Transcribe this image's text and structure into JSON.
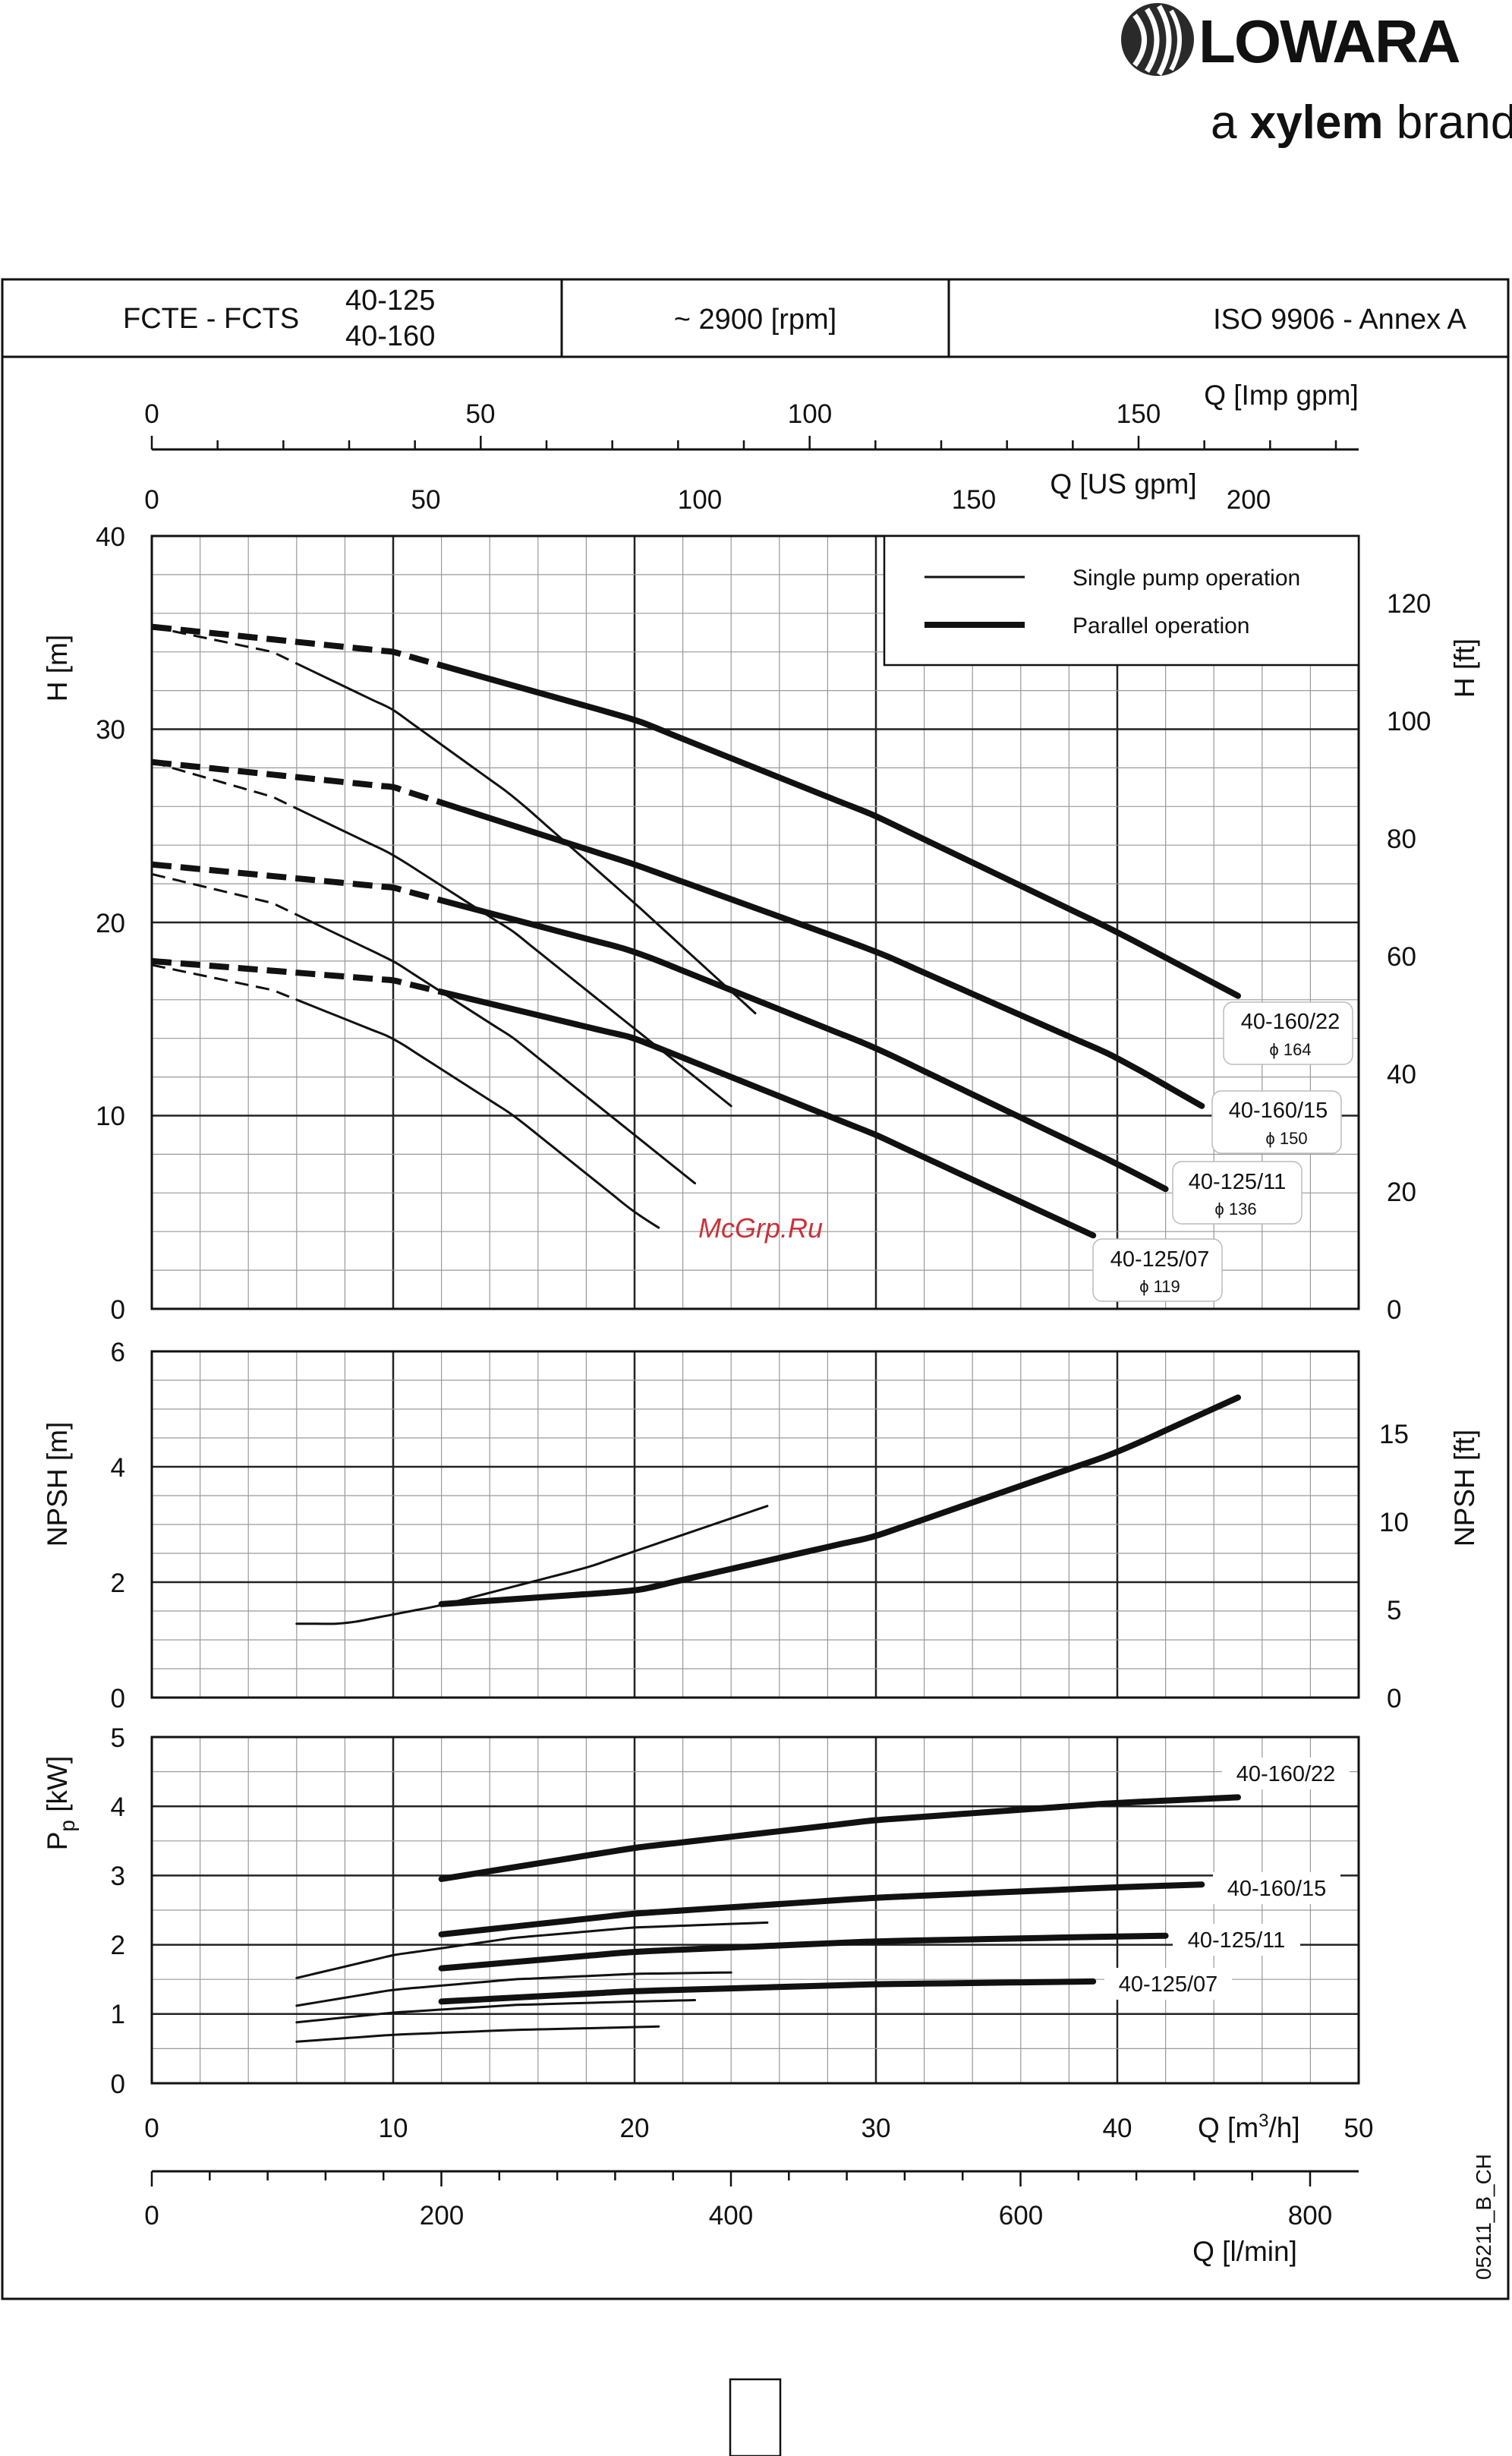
{
  "brand": {
    "name": "LOWARA",
    "tagline_prefix": "a ",
    "tagline_brand": "xylem",
    "tagline_suffix": " brand"
  },
  "header": {
    "series": "FCTE - FCTS",
    "models": [
      "40-125",
      "40-160"
    ],
    "speed": "~ 2900 [rpm]",
    "standard": "ISO 9906 - Annex A"
  },
  "legend": {
    "single": "Single pump operation",
    "parallel": "Parallel operation"
  },
  "code": "05211_B_CH",
  "watermark": "McGrp.Ru",
  "axes": {
    "q_imp": {
      "label": "Q [Imp gpm]",
      "ticks": [
        "0",
        "50",
        "100",
        "150"
      ]
    },
    "q_us": {
      "label": "Q [US gpm]",
      "ticks": [
        "0",
        "50",
        "100",
        "150",
        "200"
      ]
    },
    "q_m3h": {
      "label_pre": "Q [m",
      "label_sup": "3",
      "label_post": "/h]",
      "ticks": [
        "0",
        "10",
        "20",
        "30",
        "40",
        "50"
      ]
    },
    "q_lmin": {
      "label": "Q [l/min]",
      "ticks": [
        "0",
        "200",
        "400",
        "600",
        "800"
      ]
    },
    "h_m": {
      "label": "H [m]",
      "ticks": [
        "0",
        "10",
        "20",
        "30",
        "40"
      ]
    },
    "h_ft": {
      "label": "H [ft]",
      "ticks": [
        "0",
        "20",
        "40",
        "60",
        "80",
        "100",
        "120"
      ]
    },
    "npsh_m": {
      "label": "NPSH [m]",
      "ticks": [
        "0",
        "2",
        "4",
        "6"
      ]
    },
    "npsh_ft": {
      "label": "NPSH [ft]",
      "ticks": [
        "0",
        "5",
        "10",
        "15"
      ]
    },
    "p_kw": {
      "label_pre": "P",
      "label_sub": "p",
      "label_post": " [kW]",
      "ticks": [
        "0",
        "1",
        "2",
        "3",
        "4",
        "5"
      ]
    }
  },
  "chart_data": [
    {
      "type": "line",
      "xlabel": "Q [m3/h]",
      "ylabel": "H [m]",
      "xlim": [
        0,
        50
      ],
      "ylim": [
        0,
        40
      ],
      "series": [
        {
          "name": "40-160/22",
          "diameter": "ϕ 164",
          "mode": "single",
          "x": [
            0,
            5,
            10,
            15,
            20,
            25
          ],
          "y": [
            35.3,
            34.0,
            31.0,
            26.5,
            21.0,
            15.3
          ]
        },
        {
          "name": "40-160/22",
          "diameter": "ϕ 164",
          "mode": "parallel",
          "x": [
            0,
            10,
            20,
            30,
            40,
            45
          ],
          "y": [
            35.3,
            34.0,
            30.5,
            25.5,
            19.5,
            16.2
          ]
        },
        {
          "name": "40-160/15",
          "diameter": "ϕ 150",
          "mode": "single",
          "x": [
            0,
            5,
            10,
            15,
            20,
            24
          ],
          "y": [
            28.3,
            26.5,
            23.5,
            19.5,
            14.5,
            10.5
          ]
        },
        {
          "name": "40-160/15",
          "diameter": "ϕ 150",
          "mode": "parallel",
          "x": [
            0,
            10,
            20,
            30,
            40,
            43.5
          ],
          "y": [
            28.3,
            27.0,
            23.0,
            18.5,
            13.0,
            10.5
          ]
        },
        {
          "name": "40-125/11",
          "diameter": "ϕ 136",
          "mode": "single",
          "x": [
            0,
            5,
            10,
            15,
            20,
            22.5
          ],
          "y": [
            22.5,
            21.0,
            18.0,
            14.0,
            9.0,
            6.5
          ]
        },
        {
          "name": "40-125/11",
          "diameter": "ϕ 136",
          "mode": "parallel",
          "x": [
            0,
            10,
            20,
            30,
            40,
            42
          ],
          "y": [
            23.0,
            21.8,
            18.5,
            13.5,
            7.5,
            6.2
          ]
        },
        {
          "name": "40-125/07",
          "diameter": "ϕ 119",
          "mode": "single",
          "x": [
            0,
            5,
            10,
            15,
            20,
            21
          ],
          "y": [
            17.8,
            16.5,
            14.0,
            10.0,
            5.0,
            4.2
          ]
        },
        {
          "name": "40-125/07",
          "diameter": "ϕ 119",
          "mode": "parallel",
          "x": [
            0,
            10,
            20,
            30,
            39
          ],
          "y": [
            18.0,
            17.0,
            14.0,
            9.0,
            3.8
          ]
        }
      ]
    },
    {
      "type": "line",
      "xlabel": "Q [m3/h]",
      "ylabel": "NPSH [m]",
      "xlim": [
        0,
        50
      ],
      "ylim": [
        0,
        6
      ],
      "series": [
        {
          "name": "single",
          "x": [
            6,
            8,
            12,
            18,
            25.5
          ],
          "y": [
            1.28,
            1.28,
            1.6,
            2.25,
            3.32
          ]
        },
        {
          "name": "parallel",
          "x": [
            12,
            20,
            30,
            40,
            45
          ],
          "y": [
            1.62,
            1.85,
            2.8,
            4.25,
            5.2
          ]
        }
      ]
    },
    {
      "type": "line",
      "xlabel": "Q [m3/h]",
      "ylabel": "Pp [kW]",
      "xlim": [
        0,
        50
      ],
      "ylim": [
        0,
        5
      ],
      "series": [
        {
          "name": "40-160/22",
          "mode": "single",
          "x": [
            6,
            10,
            15,
            20,
            25.5
          ],
          "y": [
            1.52,
            1.85,
            2.1,
            2.25,
            2.32
          ]
        },
        {
          "name": "40-160/22",
          "mode": "parallel",
          "x": [
            12,
            20,
            30,
            40,
            45
          ],
          "y": [
            2.95,
            3.4,
            3.8,
            4.05,
            4.13
          ]
        },
        {
          "name": "40-160/15",
          "mode": "single",
          "x": [
            6,
            10,
            15,
            20,
            24
          ],
          "y": [
            1.12,
            1.35,
            1.5,
            1.58,
            1.6
          ]
        },
        {
          "name": "40-160/15",
          "mode": "parallel",
          "x": [
            12,
            20,
            30,
            40,
            43.5
          ],
          "y": [
            2.15,
            2.45,
            2.68,
            2.83,
            2.87
          ]
        },
        {
          "name": "40-125/11",
          "mode": "single",
          "x": [
            6,
            10,
            15,
            20,
            22.5
          ],
          "y": [
            0.88,
            1.02,
            1.13,
            1.18,
            1.2
          ]
        },
        {
          "name": "40-125/11",
          "mode": "parallel",
          "x": [
            12,
            20,
            30,
            40,
            42
          ],
          "y": [
            1.66,
            1.9,
            2.05,
            2.12,
            2.13
          ]
        },
        {
          "name": "40-125/07",
          "mode": "single",
          "x": [
            6,
            10,
            15,
            20,
            21
          ],
          "y": [
            0.6,
            0.7,
            0.77,
            0.81,
            0.82
          ]
        },
        {
          "name": "40-125/07",
          "mode": "parallel",
          "x": [
            12,
            20,
            30,
            39
          ],
          "y": [
            1.18,
            1.33,
            1.43,
            1.47
          ]
        }
      ]
    }
  ]
}
